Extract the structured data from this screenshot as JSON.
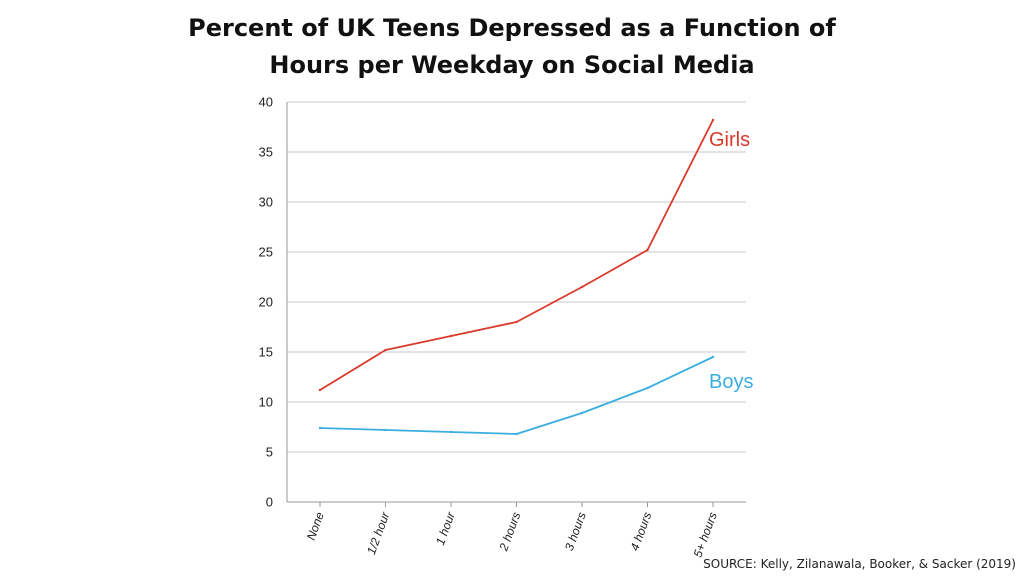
{
  "title_lines": [
    "Percent of UK Teens Depressed as a Function of",
    "Hours per Weekday on Social Media"
  ],
  "source": "SOURCE: Kelly, Zilanawala, Booker, & Sacker (2019)",
  "chart_data": {
    "type": "line",
    "categories": [
      "None",
      "1/2 hour",
      "1 hour",
      "2 hours",
      "3 hours",
      "4 hours",
      "5+ hours"
    ],
    "ylim": [
      0,
      40
    ],
    "yticks": [
      0,
      5,
      10,
      15,
      20,
      25,
      30,
      35,
      40
    ],
    "grid": true,
    "series": [
      {
        "name": "Girls",
        "color": "#d93a2b",
        "values": [
          11.2,
          15.2,
          16.6,
          18.0,
          21.5,
          25.2,
          38.2
        ]
      },
      {
        "name": "Boys",
        "color": "#3aaee0",
        "values": [
          7.4,
          7.2,
          7.0,
          6.8,
          8.9,
          11.4,
          14.5
        ]
      }
    ]
  }
}
